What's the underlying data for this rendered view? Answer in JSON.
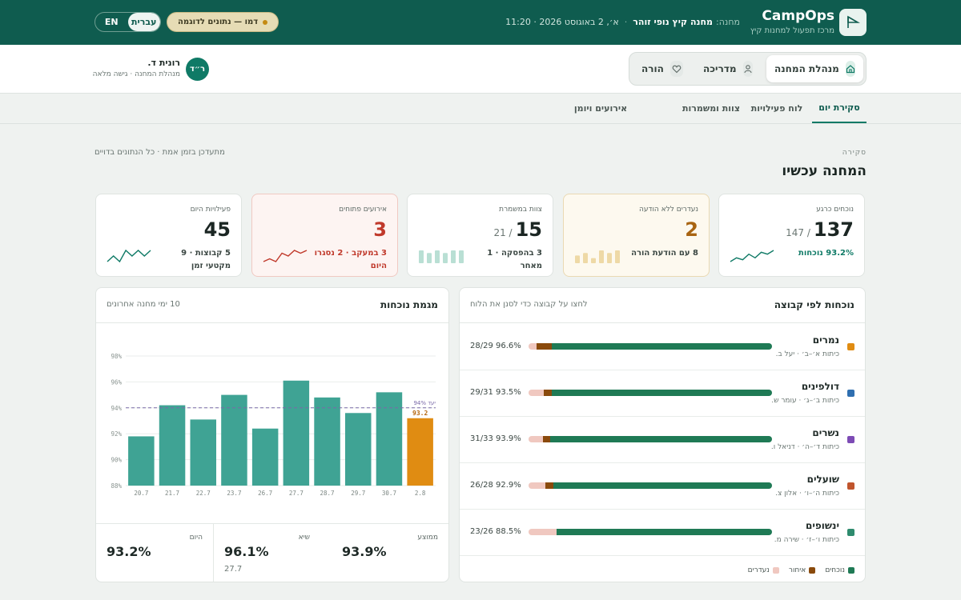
{
  "header": {
    "brand": "CampOps",
    "tagline": "מרכז תפעול למחנות קיץ",
    "camp_label": "מחנה:",
    "camp_name": "מחנה קיץ נופי זוהר",
    "datetime": "א׳, 2 באוגוסט 2026 · 11:20",
    "demo_badge": "דמו — נתונים לדוגמה",
    "lang_he": "עברית",
    "lang_en": "EN"
  },
  "roles": {
    "items": [
      {
        "label": "מנהלת המחנה",
        "icon": "home-icon",
        "active": true
      },
      {
        "label": "מדריכה",
        "icon": "user-icon",
        "active": false
      },
      {
        "label": "הורה",
        "icon": "heart-icon",
        "active": false
      }
    ]
  },
  "user": {
    "initials": "ר״ד",
    "name": "רונית ד.",
    "role": "מנהלת המחנה · גישה מלאה"
  },
  "tabs": [
    "סקירת יום",
    "לוח פעילויות",
    "צוות ומשמרות",
    "אירועים ויומן"
  ],
  "overview": {
    "eyebrow": "סקירה",
    "title": "המחנה עכשיו",
    "live_note": "מתעדכן בזמן אמת · כל הנתונים בדויים"
  },
  "kpis": [
    {
      "label": "נוכחים כרגע",
      "value": "137",
      "sub": "/ 147",
      "foot": "93.2% נוכחות",
      "style": "plain",
      "foot_style": "green",
      "spark": [
        4,
        6,
        5,
        8,
        6,
        9,
        8,
        10
      ],
      "spark_color": "#0f7a66"
    },
    {
      "label": "נעדרים ללא הודעה",
      "value": "2",
      "sub": "",
      "foot": "8 עם הודעת הורה",
      "style": "warn",
      "foot_style": "plain",
      "bars": [
        3,
        4,
        2,
        5,
        4,
        5
      ],
      "bar_color": "#eed9a6"
    },
    {
      "label": "צוות במשמרת",
      "value": "15",
      "sub": "/ 21",
      "foot": "3 בהפסקה · 1 מאחר",
      "style": "plain",
      "foot_style": "plain",
      "bars": [
        5,
        4,
        5,
        4,
        5,
        5
      ],
      "bar_color": "#b9dfd4"
    },
    {
      "label": "אירועים פתוחים",
      "value": "3",
      "sub": "",
      "foot": "3 במעקב · 2 נסגרו היום",
      "style": "alert",
      "foot_style": "red",
      "spark": [
        3,
        4,
        3,
        6,
        5,
        7,
        6,
        7
      ],
      "spark_color": "#c0392b"
    },
    {
      "label": "פעילויות היום",
      "value": "45",
      "sub": "",
      "foot": "5 קבוצות · 9 מקטעי זמן",
      "style": "plain",
      "foot_style": "plain",
      "spark": [
        5,
        6,
        5,
        7,
        6,
        7,
        6,
        7
      ],
      "spark_color": "#0f7a66"
    }
  ],
  "groups_panel": {
    "title": "נוכחות לפי קבוצה",
    "hint": "לחצו על קבוצה כדי לסנן את הלוח",
    "groups": [
      {
        "name": "נמרים",
        "meta": "כיתות א׳–ב׳ · יעל ב.",
        "stat": "28/29 96.6%",
        "color": "#e08c12",
        "present": 28,
        "late": 2,
        "absent": 1
      },
      {
        "name": "דולפינים",
        "meta": "כיתות ב׳–ג׳ · עומר ש.",
        "stat": "29/31 93.5%",
        "color": "#2f6fb0",
        "present": 29,
        "late": 1,
        "absent": 2
      },
      {
        "name": "נשרים",
        "meta": "כיתות ד׳–ה׳ · דניאל ו.",
        "stat": "31/33 93.9%",
        "color": "#7d4bb5",
        "present": 31,
        "late": 1,
        "absent": 2
      },
      {
        "name": "שועלים",
        "meta": "כיתות ה׳–ו׳ · אלון צ.",
        "stat": "26/28 92.9%",
        "color": "#c0552d",
        "present": 26,
        "late": 1,
        "absent": 2
      },
      {
        "name": "ינשופים",
        "meta": "כיתות ו׳–ז׳ · שירה מ.",
        "stat": "23/26 88.5%",
        "color": "#2e8b6e",
        "present": 23,
        "late": 0,
        "absent": 3
      }
    ],
    "legend": [
      {
        "label": "נוכחים",
        "color": "#1f7a55"
      },
      {
        "label": "איחור",
        "color": "#8a4a0c"
      },
      {
        "label": "נעדרים",
        "color": "#f0c8c0"
      }
    ]
  },
  "trend_panel": {
    "title": "מגמת נוכחות",
    "hint": "10 ימי מחנה אחרונים",
    "target_label": "יעד 94%",
    "today_label": "93.2",
    "stats": [
      {
        "label": "ממוצע",
        "value": "93.9%",
        "sub": ""
      },
      {
        "label": "שיא",
        "value": "96.1%",
        "sub": "27.7"
      },
      {
        "label": "היום",
        "value": "93.2%",
        "sub": ""
      }
    ]
  },
  "chart_data": {
    "type": "bar",
    "categories": [
      "20.7",
      "21.7",
      "22.7",
      "23.7",
      "26.7",
      "27.7",
      "28.7",
      "29.7",
      "30.7",
      "2.8"
    ],
    "values": [
      91.8,
      94.2,
      93.1,
      95.0,
      92.4,
      96.1,
      94.8,
      93.6,
      95.2,
      93.2
    ],
    "highlight_index": 9,
    "target": 94,
    "ylim": [
      88,
      98
    ],
    "yticks": [
      "88%",
      "90%",
      "92%",
      "94%",
      "96%",
      "98%"
    ],
    "ytick_values": [
      88,
      90,
      92,
      94,
      96,
      98
    ],
    "bar_color": "#3fa394",
    "highlight_color": "#e08c12",
    "target_color": "#7a6aa8",
    "grid": true
  }
}
